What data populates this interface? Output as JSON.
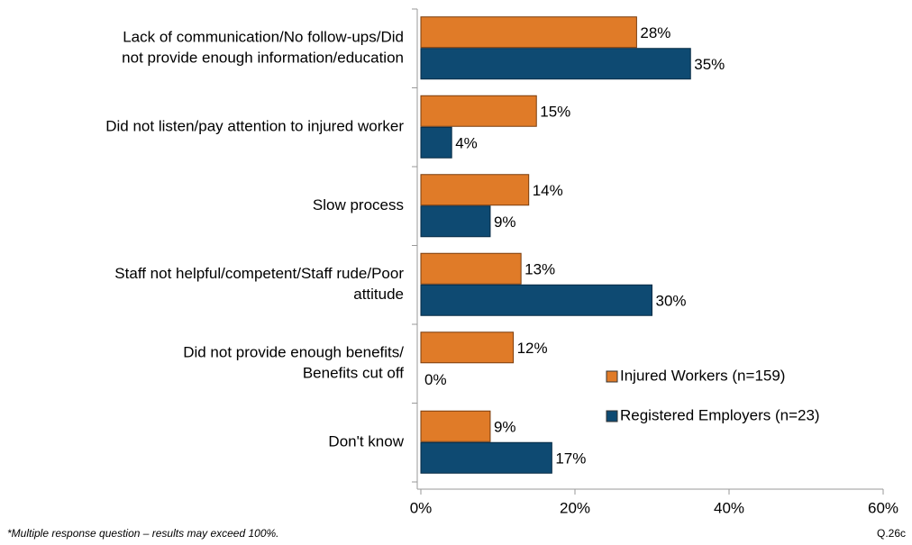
{
  "chart_data": {
    "type": "barh",
    "categories": [
      [
        "Lack of communication/No follow-ups/Did",
        "not provide enough information/education"
      ],
      [
        "Did not listen/pay attention to injured worker"
      ],
      [
        "Slow process"
      ],
      [
        "Staff not helpful/competent/Staff rude/Poor",
        "attitude"
      ],
      [
        "Did not provide enough benefits/",
        "Benefits cut off"
      ],
      [
        "Don't know"
      ]
    ],
    "series": [
      {
        "name": "Injured Workers (n=159)",
        "color": "#e07b28",
        "values": [
          28,
          15,
          14,
          13,
          12,
          9
        ],
        "value_labels": [
          "28%",
          "15%",
          "14%",
          "13%",
          "12%",
          "9%"
        ]
      },
      {
        "name": "Registered Employers (n=23)",
        "color": "#0e4a72",
        "values": [
          35,
          4,
          9,
          30,
          0,
          17
        ],
        "value_labels": [
          "35%",
          "4%",
          "9%",
          "30%",
          "0%",
          "17%"
        ]
      }
    ],
    "xlim": [
      0,
      60
    ],
    "xticks": [
      {
        "value": 0,
        "label": "0%"
      },
      {
        "value": 20,
        "label": "20%"
      },
      {
        "value": 40,
        "label": "40%"
      },
      {
        "value": 60,
        "label": "60%"
      }
    ],
    "annotations": [
      "*Multiple response question – results may exceed 100%.",
      "Q.26c"
    ]
  }
}
